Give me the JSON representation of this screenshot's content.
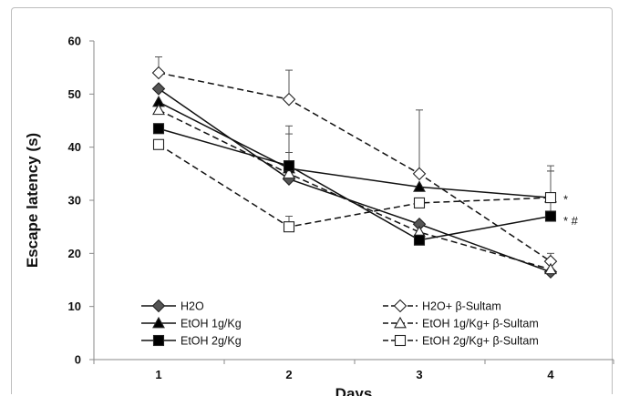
{
  "chart_data": {
    "type": "line",
    "xlabel": "Days",
    "ylabel": "Escape latency (s)",
    "categories": [
      "1",
      "2",
      "3",
      "4"
    ],
    "ylim": [
      0,
      60
    ],
    "yticks": [
      "0",
      "10",
      "20",
      "30",
      "40",
      "50",
      "60"
    ],
    "grid": false,
    "legend_position": "bottom",
    "series": [
      {
        "name": "H2O",
        "marker": "diamond",
        "fill": "#555555",
        "dashed": false,
        "values": [
          51,
          34,
          25.5,
          16.5
        ],
        "errors": [
          0,
          0,
          0,
          0
        ]
      },
      {
        "name": "H2O+ β-Sultam",
        "marker": "diamond",
        "fill": "#ffffff",
        "dashed": true,
        "values": [
          54,
          49,
          35,
          18.5
        ],
        "errors": [
          3,
          5.5,
          12,
          1.5
        ]
      },
      {
        "name": "EtOH 1g/Kg",
        "marker": "triangle",
        "fill": "#000000",
        "dashed": false,
        "values": [
          48.5,
          36,
          32.5,
          30.5
        ],
        "errors": [
          0,
          6.5,
          0,
          5
        ]
      },
      {
        "name": "EtOH 1g/Kg+ β-Sultam",
        "marker": "triangle",
        "fill": "#ffffff",
        "dashed": true,
        "values": [
          47,
          35,
          24,
          17
        ],
        "errors": [
          0,
          9,
          0,
          0
        ]
      },
      {
        "name": "EtOH 2g/Kg",
        "marker": "square",
        "fill": "#000000",
        "dashed": false,
        "values": [
          43.5,
          36.5,
          22.5,
          27
        ],
        "errors": [
          0,
          2.5,
          0,
          8.5
        ]
      },
      {
        "name": "EtOH 2g/Kg+ β-Sultam",
        "marker": "square",
        "fill": "#ffffff",
        "dashed": true,
        "values": [
          40.5,
          25,
          29.5,
          30.5
        ],
        "errors": [
          0,
          2,
          0,
          6
        ]
      }
    ],
    "annotations": [
      {
        "text": "*",
        "x": "4",
        "y": 30.3
      },
      {
        "text": "* #",
        "x": "4",
        "y": 26.2
      }
    ]
  }
}
